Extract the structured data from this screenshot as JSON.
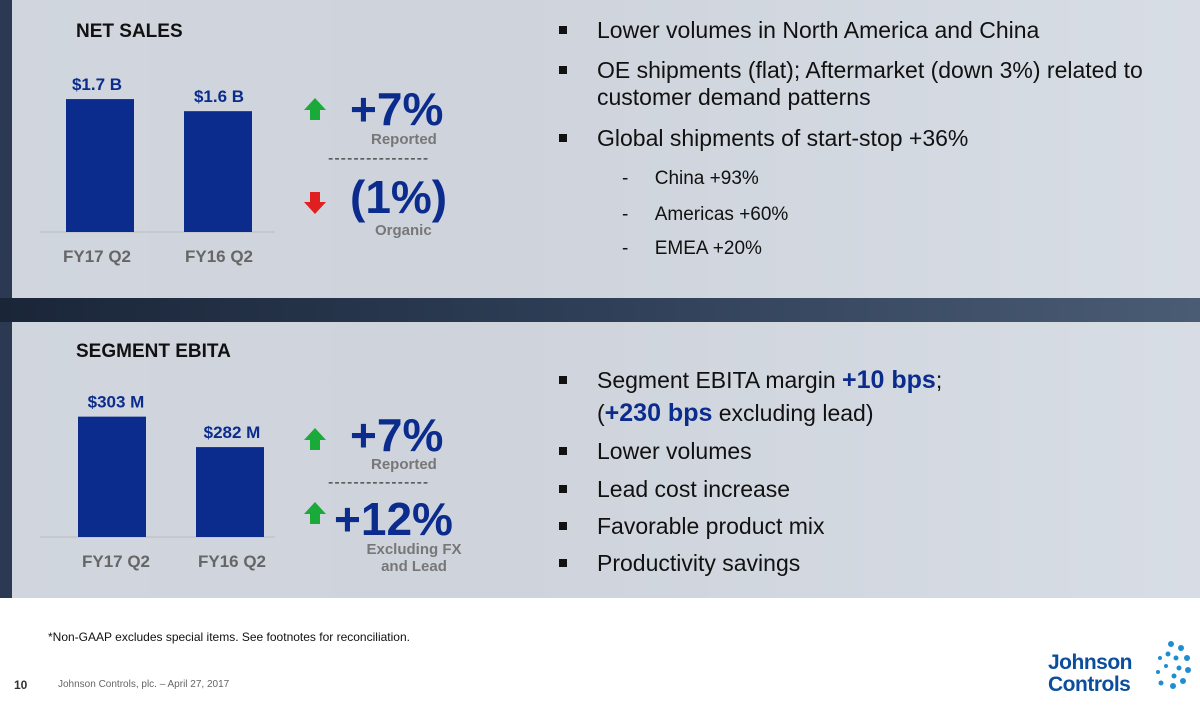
{
  "chart_data": [
    {
      "type": "bar",
      "title": "NET SALES",
      "categories": [
        "FY17 Q2",
        "FY16 Q2"
      ],
      "values": [
        1.7,
        1.6
      ],
      "value_labels": [
        "$1.7 B",
        "$1.6 B"
      ],
      "color": "#0b2c8c",
      "ylim": [
        0.6,
        1.8
      ]
    },
    {
      "type": "bar",
      "title": "SEGMENT EBITA",
      "categories": [
        "FY17 Q2",
        "FY16 Q2"
      ],
      "values": [
        303,
        282
      ],
      "value_labels": [
        "$303 M",
        "$282 M"
      ],
      "color": "#0b2c8c",
      "ylim": [
        220,
        320
      ]
    }
  ],
  "metrics": [
    [
      {
        "value": "+7%",
        "label": "Reported"
      },
      {
        "value": "(1%)",
        "label": "Organic"
      }
    ],
    [
      {
        "value": "+7%",
        "label": "Reported"
      },
      {
        "value": "+12%",
        "label": "Excluding FX and Lead"
      }
    ]
  ],
  "bullets_top": [
    {
      "text": "Lower volumes in North America and China"
    },
    {
      "text": "OE shipments (flat); Aftermarket (down 3%) related to customer demand patterns"
    },
    {
      "text": "Global shipments of start-stop +36%",
      "sub": [
        "China +93%",
        "Americas +60%",
        "EMEA +20%"
      ]
    }
  ],
  "bullets_bottom": [
    {
      "parts": [
        "Segment EBITA margin ",
        "+10 bps",
        ";",
        "(",
        "+230 bps",
        " excluding lead)"
      ]
    },
    {
      "text": "Lower volumes"
    },
    {
      "text": "Lead cost increase"
    },
    {
      "text": "Favorable product mix"
    },
    {
      "text": "Productivity savings"
    }
  ],
  "footnote": "*Non-GAAP excludes special items.  See footnotes for reconciliation.",
  "footer": {
    "page": "10",
    "text": "Johnson Controls, plc. – April 27, 2017"
  },
  "logo": {
    "line1": "Johnson",
    "line2": "Controls"
  }
}
